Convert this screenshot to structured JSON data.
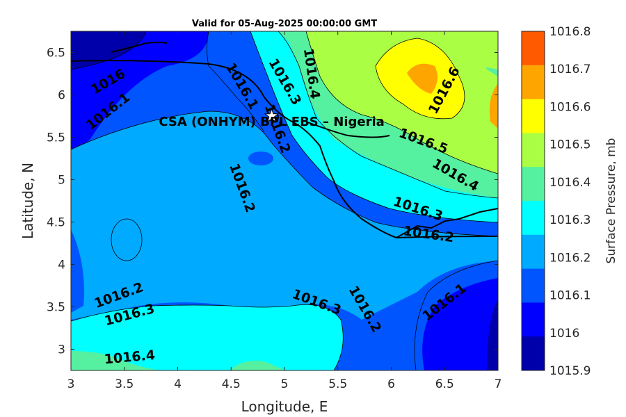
{
  "title": "Valid for 05-Aug-2025 00:00:00 GMT",
  "chart_data": {
    "type": "contour",
    "xlabel": "Longitude, E",
    "ylabel": "Latitude, N",
    "xlim": [
      3,
      7
    ],
    "ylim": [
      2.75,
      6.75
    ],
    "x_ticks": [
      "3",
      "3.5",
      "4",
      "4.5",
      "5",
      "5.5",
      "6",
      "6.5",
      "7"
    ],
    "y_ticks": [
      "3",
      "3.5",
      "4",
      "4.5",
      "5",
      "5.5",
      "6",
      "6.5"
    ],
    "colorbar": {
      "label": "Surface Pressure, mb",
      "levels": [
        "1016.8",
        "1016.7",
        "1016.6",
        "1016.5",
        "1016.4",
        "1016.3",
        "1016.2",
        "1016.1",
        "1016",
        "1015.9"
      ],
      "colors": [
        "#ff5a00",
        "#ffa500",
        "#ffff00",
        "#aaff44",
        "#55f0a0",
        "#00ffff",
        "#00aaff",
        "#0055ff",
        "#0000ff",
        "#0000aa"
      ]
    },
    "contour_labels": [
      {
        "text": "1016",
        "lon": 3.35,
        "lat": 6.15,
        "angle": -30
      },
      {
        "text": "1016.1",
        "lon": 3.35,
        "lat": 5.8,
        "angle": -38
      },
      {
        "text": "1016.1",
        "lon": 4.6,
        "lat": 6.1,
        "angle": 60
      },
      {
        "text": "1016.3",
        "lon": 5.0,
        "lat": 6.15,
        "angle": 60
      },
      {
        "text": "1016.4",
        "lon": 5.25,
        "lat": 6.25,
        "angle": 82
      },
      {
        "text": "1016.2",
        "lon": 4.93,
        "lat": 5.6,
        "angle": 70
      },
      {
        "text": "1016.6",
        "lon": 6.5,
        "lat": 6.05,
        "angle": -62
      },
      {
        "text": "1016.5",
        "lon": 6.3,
        "lat": 5.45,
        "angle": 20
      },
      {
        "text": "1016.4",
        "lon": 6.6,
        "lat": 5.05,
        "angle": 30
      },
      {
        "text": "1016.3",
        "lon": 6.25,
        "lat": 4.65,
        "angle": 18
      },
      {
        "text": "1016.2",
        "lon": 6.35,
        "lat": 4.35,
        "angle": 8
      },
      {
        "text": "1016.2",
        "lon": 4.6,
        "lat": 4.9,
        "angle": 70
      },
      {
        "text": "1016.2",
        "lon": 3.45,
        "lat": 3.63,
        "angle": -20
      },
      {
        "text": "1016.3",
        "lon": 3.55,
        "lat": 3.4,
        "angle": -15
      },
      {
        "text": "1016.4",
        "lon": 3.55,
        "lat": 2.9,
        "angle": -5
      },
      {
        "text": "1016.3",
        "lon": 5.3,
        "lat": 3.55,
        "angle": 20
      },
      {
        "text": "1016.2",
        "lon": 5.75,
        "lat": 3.47,
        "angle": 60
      },
      {
        "text": "1016.1",
        "lon": 6.5,
        "lat": 3.55,
        "angle": -38
      }
    ],
    "site": {
      "name": "CSA (ONHYM) BPL EBS – Nigeria",
      "lon": 4.88,
      "lat": 5.75
    }
  }
}
